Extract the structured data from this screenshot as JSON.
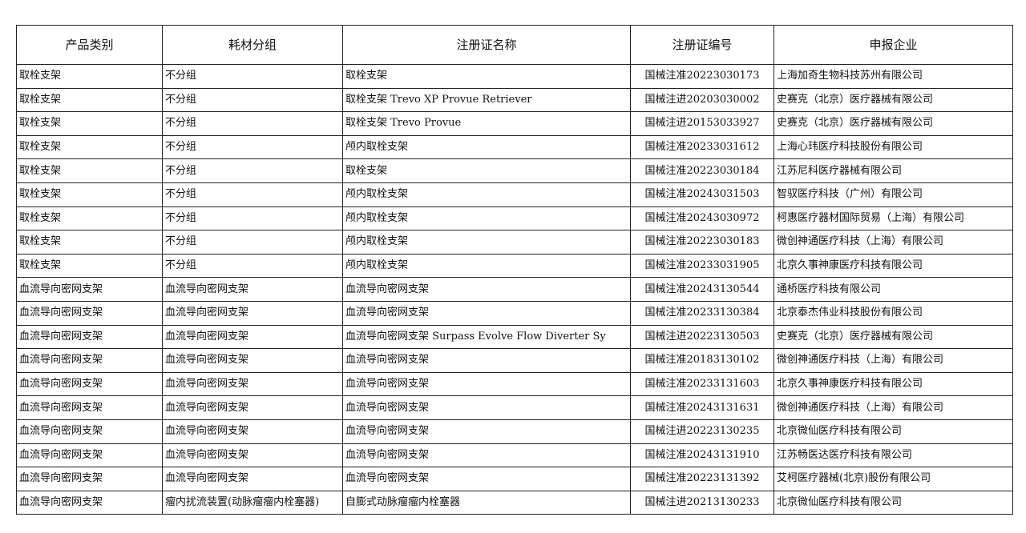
{
  "headers": [
    "产品类别",
    "耗材分组",
    "注册证名称",
    "注册证编号",
    "申报企业"
  ],
  "rows": [
    [
      "取栓支架",
      "不分组",
      "取栓支架",
      "国械注准20223030173",
      "上海加奇生物科技苏州有限公司"
    ],
    [
      "取栓支架",
      "不分组",
      "取栓支架 Trevo XP Provue Retriever",
      "国械注进20203030002",
      "史赛克（北京）医疗器械有限公司"
    ],
    [
      "取栓支架",
      "不分组",
      "取栓支架 Trevo Provue",
      "国械注进20153033927",
      "史赛克（北京）医疗器械有限公司"
    ],
    [
      "取栓支架",
      "不分组",
      "颅内取栓支架",
      "国械注准20233031612",
      "上海心玮医疗科技股份有限公司"
    ],
    [
      "取栓支架",
      "不分组",
      "取栓支架",
      "国械注准20223030184",
      "江苏尼科医疗器械有限公司"
    ],
    [
      "取栓支架",
      "不分组",
      "颅内取栓支架",
      "国械注准20243031503",
      "智驭医疗科技（广州）有限公司"
    ],
    [
      "取栓支架",
      "不分组",
      "颅内取栓支架",
      "国械注准20243030972",
      "柯惠医疗器材国际贸易（上海）有限公司"
    ],
    [
      "取栓支架",
      "不分组",
      "颅内取栓支架",
      "国械注准20223030183",
      "微创神通医疗科技（上海）有限公司"
    ],
    [
      "取栓支架",
      "不分组",
      "颅内取栓支架",
      "国械注准20233031905",
      "北京久事神康医疗科技有限公司"
    ],
    [
      "血流导向密网支架",
      "血流导向密网支架",
      "血流导向密网支架",
      "国械注准20243130544",
      "通桥医疗科技有限公司"
    ],
    [
      "血流导向密网支架",
      "血流导向密网支架",
      "血流导向密网支架",
      "国械注准20233130384",
      "北京泰杰伟业科技股份有限公司"
    ],
    [
      "血流导向密网支架",
      "血流导向密网支架",
      "血流导向密网支架 Surpass Evolve Flow Diverter Sy",
      "国械注进20223130503",
      "史赛克（北京）医疗器械有限公司"
    ],
    [
      "血流导向密网支架",
      "血流导向密网支架",
      "血流导向密网支架",
      "国械注准20183130102",
      "微创神通医疗科技（上海）有限公司"
    ],
    [
      "血流导向密网支架",
      "血流导向密网支架",
      "血流导向密网支架",
      "国械注准20233131603",
      "北京久事神康医疗科技有限公司"
    ],
    [
      "血流导向密网支架",
      "血流导向密网支架",
      "血流导向密网支架",
      "国械注准20243131631",
      "微创神通医疗科技（上海）有限公司"
    ],
    [
      "血流导向密网支架",
      "血流导向密网支架",
      "血流导向密网支架",
      "国械注进20223130235",
      "北京微仙医疗科技有限公司"
    ],
    [
      "血流导向密网支架",
      "血流导向密网支架",
      "血流导向密网支架",
      "国械注准20243131910",
      "江苏畅医达医疗科技有限公司"
    ],
    [
      "血流导向密网支架",
      "血流导向密网支架",
      "血流导向密网支架",
      "国械注准20223131392",
      "艾柯医疗器械(北京)股份有限公司"
    ],
    [
      "血流导向密网支架",
      "瘤内扰流装置(动脉瘤瘤内栓塞器)",
      "自膨式动脉瘤瘤内栓塞器",
      "国械注进20213130233",
      "北京微仙医疗科技有限公司"
    ]
  ]
}
